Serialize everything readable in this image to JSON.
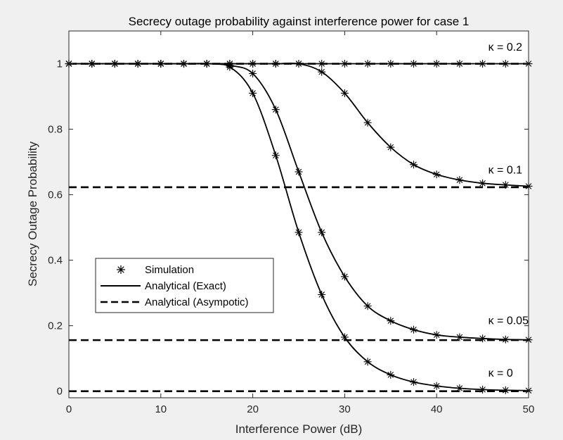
{
  "chart_data": {
    "type": "line",
    "title": "Secrecy outage probability against interference power for case 1",
    "xlabel": "Interference Power (dB)",
    "ylabel": "Secrecy Outage Probability",
    "xlim": [
      0,
      50
    ],
    "ylim": [
      -0.02,
      1.1
    ],
    "xticks": [
      0,
      10,
      20,
      30,
      40,
      50
    ],
    "xtick_labels": [
      "0",
      "10",
      "20",
      "30",
      "40",
      "50"
    ],
    "yticks": [
      0,
      0.2,
      0.4,
      0.6,
      0.8,
      1
    ],
    "ytick_labels": [
      "0",
      "0.2",
      "0.4",
      "0.6",
      "0.8",
      "1"
    ],
    "grid": false,
    "legend": {
      "placement": "bottom-left",
      "entries": [
        "Simulation",
        "Analytical (Exact)",
        "Analytical (Asympotic)"
      ]
    },
    "annotations": [
      {
        "text": "κ = 0.2",
        "x": 45,
        "y": 1.04
      },
      {
        "text": "κ = 0.1",
        "x": 45,
        "y": 0.665
      },
      {
        "text": "κ = 0.05",
        "x": 45,
        "y": 0.205
      },
      {
        "text": "κ = 0",
        "x": 45,
        "y": 0.045
      }
    ],
    "x": [
      0,
      2.5,
      5,
      7.5,
      10,
      12.5,
      15,
      17.5,
      20,
      22.5,
      25,
      27.5,
      30,
      32.5,
      35,
      37.5,
      40,
      42.5,
      45,
      47.5,
      50
    ],
    "series": [
      {
        "kind": "exact",
        "values": [
          1,
          1,
          1,
          1,
          1,
          1,
          1,
          1,
          1,
          1,
          1,
          1,
          1,
          1,
          1,
          1,
          1,
          1,
          1,
          1,
          1
        ]
      },
      {
        "kind": "exact",
        "values": [
          1,
          1,
          1,
          1,
          1,
          1,
          1,
          1,
          1,
          1,
          1,
          0.975,
          0.91,
          0.82,
          0.745,
          0.692,
          0.662,
          0.645,
          0.635,
          0.63,
          0.626
        ]
      },
      {
        "kind": "exact",
        "values": [
          1,
          1,
          1,
          1,
          1,
          1,
          1,
          0.995,
          0.97,
          0.86,
          0.67,
          0.485,
          0.35,
          0.26,
          0.215,
          0.188,
          0.172,
          0.165,
          0.161,
          0.158,
          0.157
        ]
      },
      {
        "kind": "exact",
        "values": [
          1,
          1,
          1,
          1,
          1,
          1,
          1,
          0.99,
          0.91,
          0.72,
          0.485,
          0.295,
          0.165,
          0.09,
          0.05,
          0.028,
          0.016,
          0.009,
          0.005,
          0.003,
          0.002
        ]
      },
      {
        "kind": "simulation",
        "values": [
          1,
          1,
          1,
          1,
          1,
          1,
          1,
          1,
          1,
          1,
          1,
          1,
          1,
          1,
          1,
          1,
          1,
          1,
          1,
          1,
          1
        ]
      },
      {
        "kind": "simulation",
        "values": [
          1,
          1,
          1,
          1,
          1,
          1,
          1,
          1,
          1,
          1,
          1,
          0.975,
          0.91,
          0.82,
          0.745,
          0.692,
          0.662,
          0.645,
          0.635,
          0.63,
          0.626
        ]
      },
      {
        "kind": "simulation",
        "values": [
          1,
          1,
          1,
          1,
          1,
          1,
          1,
          0.995,
          0.97,
          0.86,
          0.67,
          0.485,
          0.35,
          0.26,
          0.215,
          0.188,
          0.172,
          0.165,
          0.161,
          0.158,
          0.157
        ]
      },
      {
        "kind": "simulation",
        "values": [
          1,
          1,
          1,
          1,
          1,
          1,
          1,
          0.99,
          0.91,
          0.72,
          0.485,
          0.295,
          0.165,
          0.09,
          0.05,
          0.028,
          0.016,
          0.009,
          0.005,
          0.003,
          0.002
        ]
      },
      {
        "kind": "asymptotic",
        "values": [
          1,
          1,
          1,
          1,
          1,
          1,
          1,
          1,
          1,
          1,
          1,
          1,
          1,
          1,
          1,
          1,
          1,
          1,
          1,
          1,
          1
        ]
      },
      {
        "kind": "asymptotic",
        "values": [
          0.623,
          0.623,
          0.623,
          0.623,
          0.623,
          0.623,
          0.623,
          0.623,
          0.623,
          0.623,
          0.623,
          0.623,
          0.623,
          0.623,
          0.623,
          0.623,
          0.623,
          0.623,
          0.623,
          0.623,
          0.623
        ]
      },
      {
        "kind": "asymptotic",
        "values": [
          0.156,
          0.156,
          0.156,
          0.156,
          0.156,
          0.156,
          0.156,
          0.156,
          0.156,
          0.156,
          0.156,
          0.156,
          0.156,
          0.156,
          0.156,
          0.156,
          0.156,
          0.156,
          0.156,
          0.156,
          0.156
        ]
      },
      {
        "kind": "asymptotic",
        "values": [
          0,
          0,
          0,
          0,
          0,
          0,
          0,
          0,
          0,
          0,
          0,
          0,
          0,
          0,
          0,
          0,
          0,
          0,
          0,
          0,
          0
        ]
      }
    ]
  }
}
